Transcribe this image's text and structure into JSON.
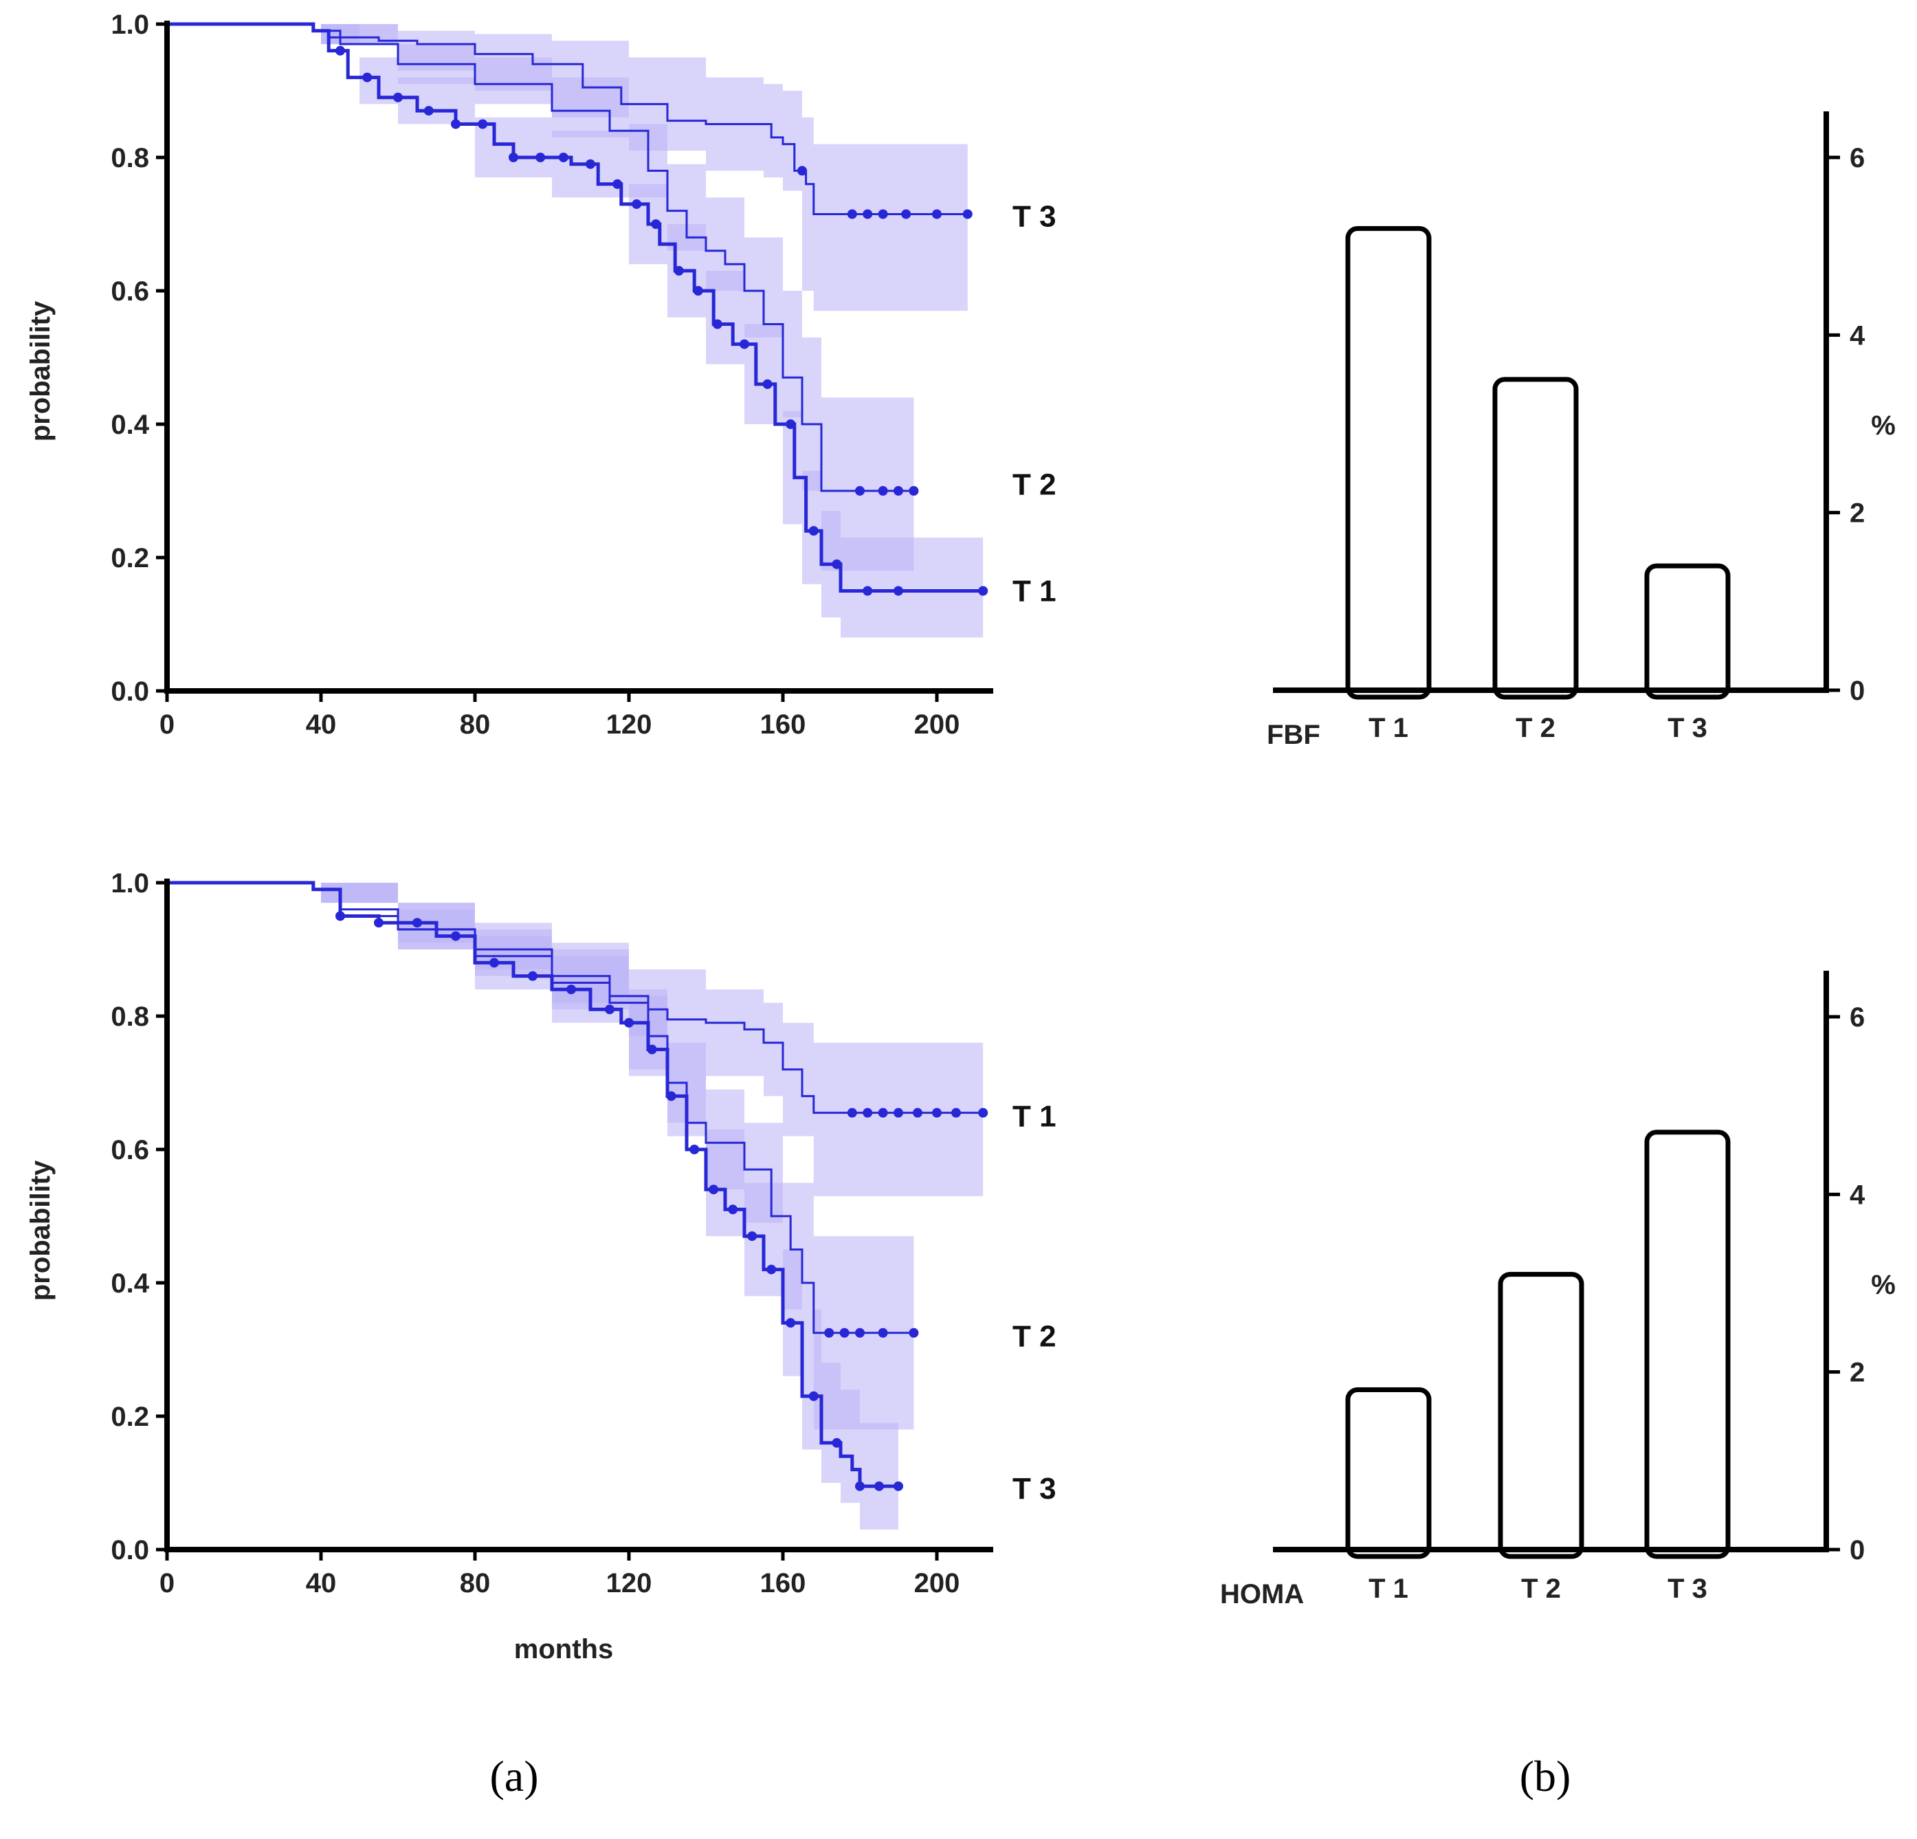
{
  "chart_data": [
    {
      "id": "a-top",
      "type": "line",
      "subtype": "kaplan-meier",
      "xlabel": "",
      "ylabel": "probability",
      "xlim": [
        0,
        215
      ],
      "ylim": [
        0,
        1
      ],
      "x_ticks": [
        "0",
        "40",
        "80",
        "120",
        "160",
        "200"
      ],
      "y_ticks": [
        "0.0",
        "0.2",
        "0.4",
        "0.6",
        "0.8",
        "1.0"
      ],
      "series": [
        {
          "name": "T 3",
          "points": [
            [
              0,
              1
            ],
            [
              30,
              1
            ],
            [
              38,
              0.99
            ],
            [
              42,
              0.98
            ],
            [
              55,
              0.975
            ],
            [
              65,
              0.97
            ],
            [
              80,
              0.955
            ],
            [
              95,
              0.94
            ],
            [
              108,
              0.905
            ],
            [
              118,
              0.88
            ],
            [
              130,
              0.855
            ],
            [
              140,
              0.85
            ],
            [
              150,
              0.85
            ],
            [
              157,
              0.83
            ],
            [
              160,
              0.82
            ],
            [
              163,
              0.78
            ],
            [
              166,
              0.76
            ],
            [
              168,
              0.715
            ],
            [
              208,
              0.715
            ]
          ],
          "band": [
            [
              0,
              1,
              1
            ],
            [
              30,
              1,
              1
            ],
            [
              40,
              0.97,
              1.0
            ],
            [
              60,
              0.93,
              0.99
            ],
            [
              80,
              0.9,
              0.985
            ],
            [
              100,
              0.86,
              0.975
            ],
            [
              120,
              0.81,
              0.95
            ],
            [
              140,
              0.78,
              0.92
            ],
            [
              155,
              0.77,
              0.91
            ],
            [
              160,
              0.75,
              0.9
            ],
            [
              165,
              0.6,
              0.86
            ],
            [
              168,
              0.57,
              0.82
            ],
            [
              208,
              0.57,
              0.82
            ]
          ],
          "censor_x": [
            165,
            178,
            182,
            186,
            192,
            200,
            208
          ]
        },
        {
          "name": "T 2",
          "points": [
            [
              0,
              1
            ],
            [
              30,
              1
            ],
            [
              38,
              0.99
            ],
            [
              45,
              0.97
            ],
            [
              60,
              0.94
            ],
            [
              80,
              0.91
            ],
            [
              100,
              0.87
            ],
            [
              115,
              0.84
            ],
            [
              125,
              0.78
            ],
            [
              130,
              0.72
            ],
            [
              135,
              0.68
            ],
            [
              140,
              0.66
            ],
            [
              145,
              0.64
            ],
            [
              150,
              0.6
            ],
            [
              155,
              0.55
            ],
            [
              160,
              0.47
            ],
            [
              165,
              0.4
            ],
            [
              170,
              0.3
            ],
            [
              194,
              0.3
            ]
          ],
          "band": [
            [
              0,
              1,
              1
            ],
            [
              30,
              1,
              1
            ],
            [
              40,
              0.97,
              1.0
            ],
            [
              60,
              0.91,
              0.97
            ],
            [
              80,
              0.88,
              0.95
            ],
            [
              100,
              0.83,
              0.92
            ],
            [
              120,
              0.74,
              0.85
            ],
            [
              130,
              0.66,
              0.79
            ],
            [
              140,
              0.6,
              0.74
            ],
            [
              150,
              0.53,
              0.68
            ],
            [
              160,
              0.41,
              0.6
            ],
            [
              165,
              0.3,
              0.53
            ],
            [
              170,
              0.18,
              0.44
            ],
            [
              194,
              0.18,
              0.44
            ]
          ],
          "censor_x": [
            180,
            186,
            190,
            194
          ]
        },
        {
          "name": "T 1",
          "points": [
            [
              0,
              1
            ],
            [
              30,
              1
            ],
            [
              38,
              0.99
            ],
            [
              42,
              0.96
            ],
            [
              47,
              0.92
            ],
            [
              55,
              0.89
            ],
            [
              65,
              0.87
            ],
            [
              75,
              0.85
            ],
            [
              85,
              0.82
            ],
            [
              90,
              0.8
            ],
            [
              105,
              0.79
            ],
            [
              112,
              0.76
            ],
            [
              118,
              0.73
            ],
            [
              125,
              0.7
            ],
            [
              128,
              0.67
            ],
            [
              132,
              0.63
            ],
            [
              137,
              0.6
            ],
            [
              142,
              0.55
            ],
            [
              147,
              0.52
            ],
            [
              153,
              0.46
            ],
            [
              158,
              0.4
            ],
            [
              163,
              0.32
            ],
            [
              166,
              0.24
            ],
            [
              170,
              0.19
            ],
            [
              175,
              0.15
            ],
            [
              212,
              0.15
            ]
          ],
          "band": [
            [
              0,
              1,
              1
            ],
            [
              30,
              1,
              1
            ],
            [
              40,
              0.97,
              1.0
            ],
            [
              50,
              0.88,
              0.95
            ],
            [
              60,
              0.85,
              0.92
            ],
            [
              80,
              0.77,
              0.86
            ],
            [
              100,
              0.74,
              0.84
            ],
            [
              120,
              0.64,
              0.76
            ],
            [
              130,
              0.56,
              0.7
            ],
            [
              140,
              0.49,
              0.63
            ],
            [
              150,
              0.4,
              0.55
            ],
            [
              160,
              0.25,
              0.42
            ],
            [
              165,
              0.16,
              0.33
            ],
            [
              170,
              0.11,
              0.27
            ],
            [
              175,
              0.08,
              0.23
            ],
            [
              212,
              0.08,
              0.23
            ]
          ],
          "censor_x": [
            45,
            52,
            60,
            68,
            75,
            82,
            90,
            97,
            103,
            110,
            117,
            122,
            127,
            133,
            138,
            143,
            150,
            156,
            162,
            168,
            174,
            182,
            190,
            212
          ]
        }
      ],
      "curve_labels": [
        "T 3",
        "T 2",
        "T 1"
      ]
    },
    {
      "id": "b-top",
      "type": "bar",
      "categories": [
        "T 1",
        "T 2",
        "T 3"
      ],
      "values": [
        5.2,
        3.5,
        1.4
      ],
      "group_label": "FBF",
      "ylabel": "%",
      "ylim": [
        0,
        6.5
      ],
      "y_ticks": [
        "0",
        "2",
        "4",
        "6"
      ]
    },
    {
      "id": "a-bottom",
      "type": "line",
      "subtype": "kaplan-meier",
      "xlabel": "months",
      "ylabel": "probability",
      "xlim": [
        0,
        215
      ],
      "ylim": [
        0,
        1
      ],
      "x_ticks": [
        "0",
        "40",
        "80",
        "120",
        "160",
        "200"
      ],
      "y_ticks": [
        "0.0",
        "0.2",
        "0.4",
        "0.6",
        "0.8",
        "1.0"
      ],
      "series": [
        {
          "name": "T 1",
          "points": [
            [
              0,
              1
            ],
            [
              30,
              1
            ],
            [
              38,
              0.99
            ],
            [
              45,
              0.96
            ],
            [
              60,
              0.93
            ],
            [
              80,
              0.9
            ],
            [
              100,
              0.86
            ],
            [
              115,
              0.83
            ],
            [
              125,
              0.81
            ],
            [
              130,
              0.795
            ],
            [
              140,
              0.79
            ],
            [
              150,
              0.78
            ],
            [
              155,
              0.76
            ],
            [
              160,
              0.72
            ],
            [
              165,
              0.68
            ],
            [
              168,
              0.655
            ],
            [
              212,
              0.655
            ]
          ],
          "band": [
            [
              0,
              1,
              1
            ],
            [
              30,
              1,
              1
            ],
            [
              40,
              0.97,
              1.0
            ],
            [
              60,
              0.9,
              0.97
            ],
            [
              80,
              0.87,
              0.94
            ],
            [
              100,
              0.82,
              0.91
            ],
            [
              120,
              0.77,
              0.87
            ],
            [
              140,
              0.71,
              0.84
            ],
            [
              155,
              0.68,
              0.82
            ],
            [
              160,
              0.62,
              0.79
            ],
            [
              168,
              0.53,
              0.76
            ],
            [
              212,
              0.53,
              0.76
            ]
          ],
          "censor_x": [
            178,
            182,
            186,
            190,
            195,
            200,
            205,
            212
          ]
        },
        {
          "name": "T 2",
          "points": [
            [
              0,
              1
            ],
            [
              30,
              1
            ],
            [
              38,
              0.99
            ],
            [
              45,
              0.95
            ],
            [
              60,
              0.93
            ],
            [
              80,
              0.89
            ],
            [
              100,
              0.85
            ],
            [
              115,
              0.82
            ],
            [
              125,
              0.77
            ],
            [
              130,
              0.7
            ],
            [
              135,
              0.64
            ],
            [
              140,
              0.61
            ],
            [
              150,
              0.57
            ],
            [
              157,
              0.5
            ],
            [
              162,
              0.45
            ],
            [
              165,
              0.4
            ],
            [
              168,
              0.325
            ],
            [
              194,
              0.325
            ]
          ],
          "band": [
            [
              0,
              1,
              1
            ],
            [
              30,
              1,
              1
            ],
            [
              40,
              0.97,
              1.0
            ],
            [
              60,
              0.91,
              0.96
            ],
            [
              80,
              0.86,
              0.93
            ],
            [
              100,
              0.81,
              0.9
            ],
            [
              120,
              0.72,
              0.84
            ],
            [
              130,
              0.64,
              0.77
            ],
            [
              140,
              0.54,
              0.69
            ],
            [
              150,
              0.49,
              0.64
            ],
            [
              160,
              0.36,
              0.55
            ],
            [
              168,
              0.18,
              0.47
            ],
            [
              194,
              0.18,
              0.47
            ]
          ],
          "censor_x": [
            172,
            176,
            180,
            186,
            194
          ]
        },
        {
          "name": "T 3",
          "points": [
            [
              0,
              1
            ],
            [
              30,
              1
            ],
            [
              38,
              0.99
            ],
            [
              45,
              0.95
            ],
            [
              55,
              0.94
            ],
            [
              70,
              0.92
            ],
            [
              80,
              0.88
            ],
            [
              90,
              0.86
            ],
            [
              100,
              0.84
            ],
            [
              110,
              0.81
            ],
            [
              118,
              0.79
            ],
            [
              125,
              0.75
            ],
            [
              130,
              0.68
            ],
            [
              135,
              0.6
            ],
            [
              140,
              0.54
            ],
            [
              145,
              0.51
            ],
            [
              150,
              0.47
            ],
            [
              155,
              0.42
            ],
            [
              160,
              0.34
            ],
            [
              165,
              0.23
            ],
            [
              170,
              0.16
            ],
            [
              175,
              0.14
            ],
            [
              178,
              0.12
            ],
            [
              180,
              0.095
            ],
            [
              190,
              0.095
            ]
          ],
          "band": [
            [
              0,
              1,
              1
            ],
            [
              30,
              1,
              1
            ],
            [
              40,
              0.97,
              1.0
            ],
            [
              60,
              0.9,
              0.97
            ],
            [
              80,
              0.84,
              0.92
            ],
            [
              100,
              0.79,
              0.89
            ],
            [
              120,
              0.71,
              0.83
            ],
            [
              130,
              0.62,
              0.76
            ],
            [
              140,
              0.47,
              0.63
            ],
            [
              150,
              0.38,
              0.55
            ],
            [
              160,
              0.26,
              0.45
            ],
            [
              165,
              0.15,
              0.36
            ],
            [
              170,
              0.1,
              0.28
            ],
            [
              175,
              0.07,
              0.24
            ],
            [
              180,
              0.03,
              0.19
            ],
            [
              190,
              0.03,
              0.19
            ]
          ],
          "censor_x": [
            45,
            55,
            65,
            75,
            85,
            95,
            105,
            115,
            120,
            126,
            131,
            137,
            142,
            147,
            152,
            157,
            162,
            168,
            174,
            180,
            185,
            190
          ]
        }
      ],
      "curve_labels": [
        "T 1",
        "T 2",
        "T 3"
      ]
    },
    {
      "id": "b-bottom",
      "type": "bar",
      "categories": [
        "T 1",
        "T 2",
        "T 3"
      ],
      "values": [
        1.8,
        3.1,
        4.7
      ],
      "group_label": "HOMA",
      "ylabel": "%",
      "ylim": [
        0,
        6.5
      ],
      "y_ticks": [
        "0",
        "2",
        "4",
        "6"
      ]
    }
  ],
  "captions": {
    "a": "(a)",
    "b": "(b)"
  },
  "colors": {
    "line": "#2727d6",
    "band": "#b9b3f6",
    "bar_stroke": "#000000",
    "axis": "#000000"
  }
}
